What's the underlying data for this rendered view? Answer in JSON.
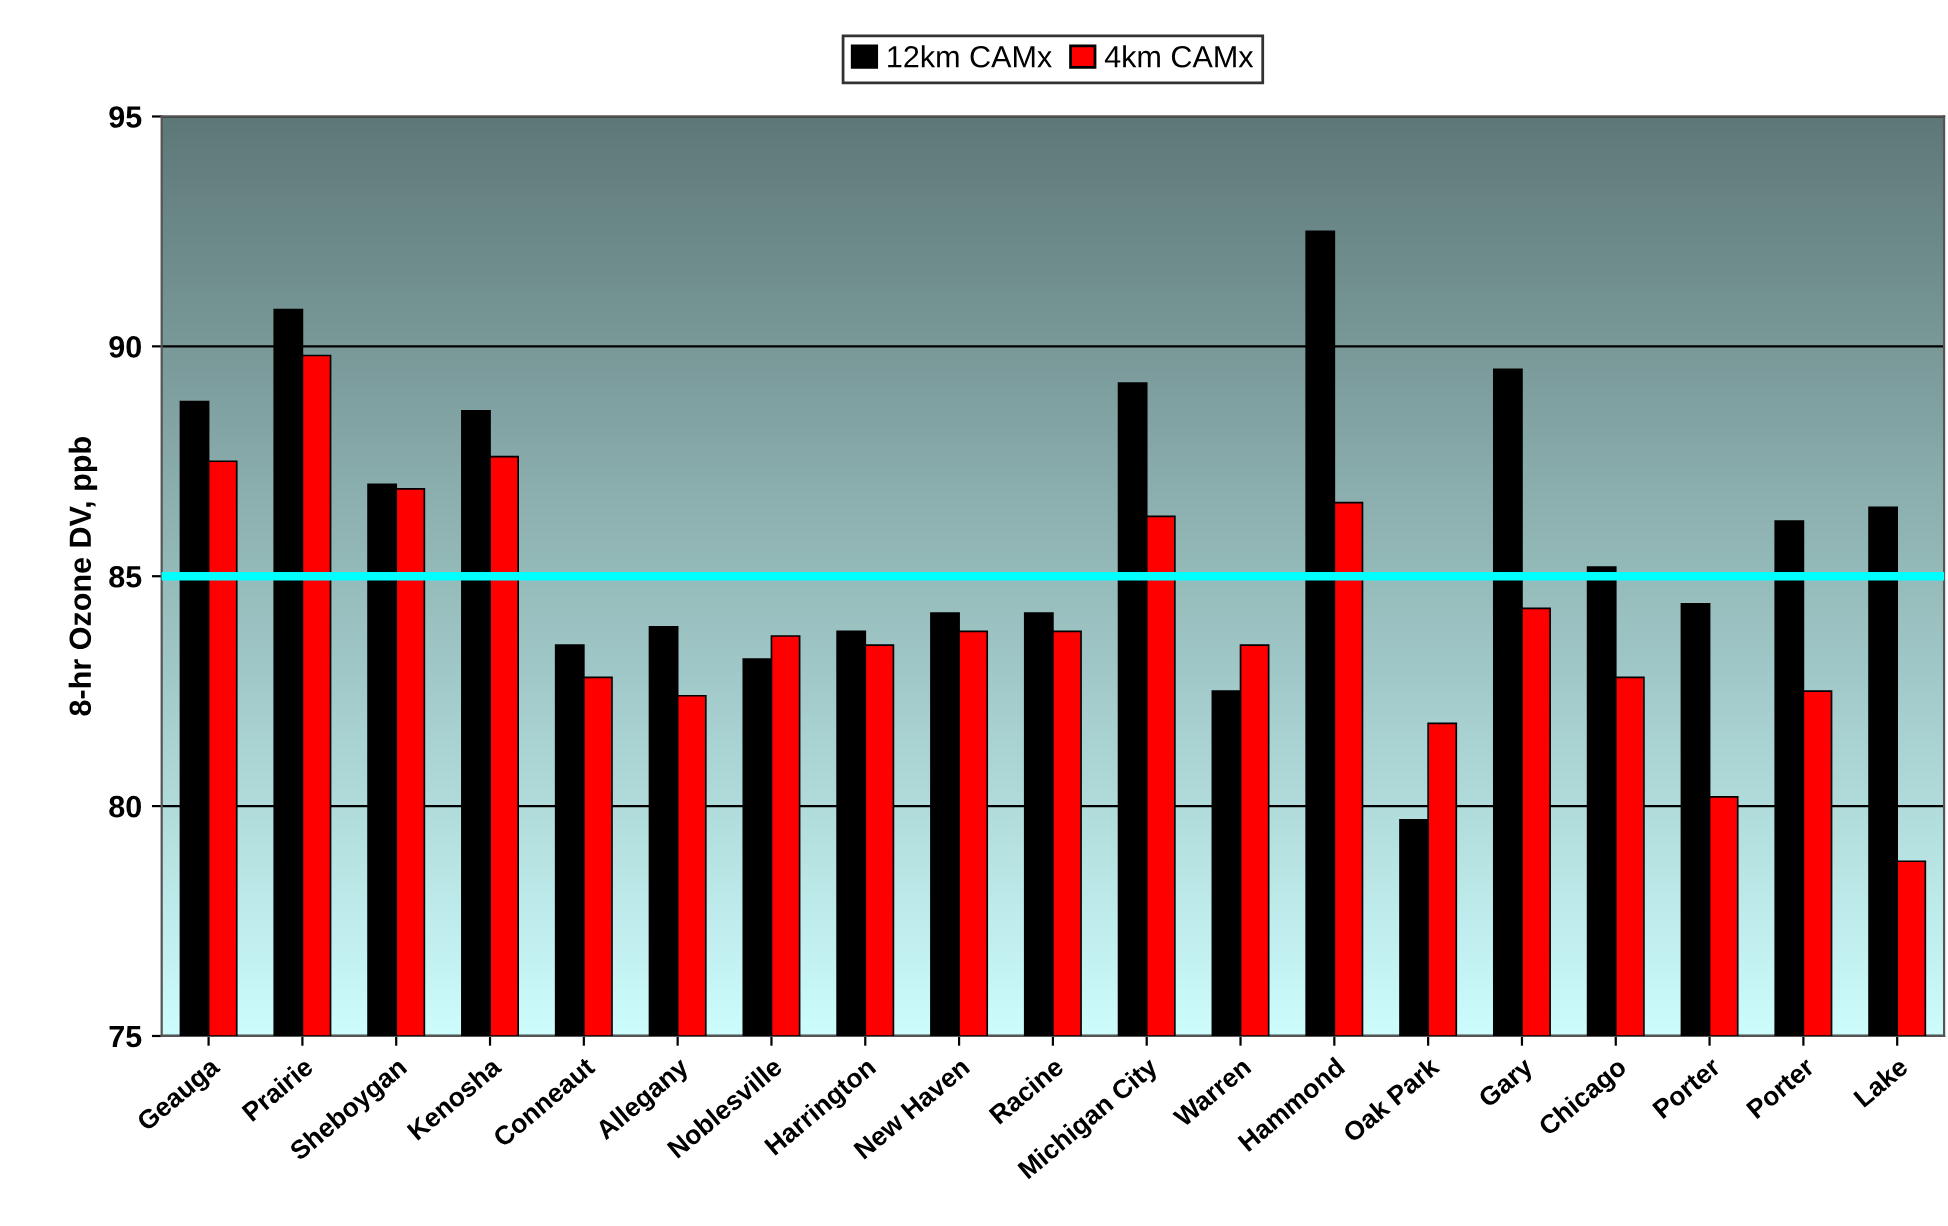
{
  "chart_data": {
    "type": "bar",
    "ylabel": "8-hr Ozone DV, ppb",
    "categories": [
      "Geauga",
      "Prairie",
      "Sheboygan",
      "Kenosha",
      "Conneaut",
      "Allegany",
      "Noblesville",
      "Harrington",
      "New Haven",
      "Racine",
      "Michigan City",
      "Warren",
      "Hammond",
      "Oak Park",
      "Gary",
      "Chicago",
      "Porter",
      "Porter",
      "Lake"
    ],
    "series": [
      {
        "name": "12km CAMx",
        "color": "#000000",
        "values": [
          88.8,
          90.8,
          87.0,
          88.6,
          83.5,
          83.9,
          83.2,
          83.8,
          84.2,
          84.2,
          89.2,
          82.5,
          92.5,
          79.7,
          89.5,
          85.2,
          84.4,
          86.2,
          86.5
        ]
      },
      {
        "name": "4km CAMx",
        "color": "#ff0000",
        "values": [
          87.5,
          89.8,
          86.9,
          87.6,
          82.8,
          82.4,
          83.7,
          83.5,
          83.8,
          83.8,
          86.3,
          83.5,
          86.6,
          81.8,
          84.3,
          82.8,
          80.2,
          82.5,
          78.8
        ]
      }
    ],
    "ylim": [
      75,
      95
    ],
    "yticks": [
      75,
      80,
      85,
      90,
      95
    ],
    "ref_lines": [
      {
        "axis": "y",
        "value": 85,
        "color": "#00ffff"
      }
    ],
    "grid": "y",
    "legend": "top"
  }
}
